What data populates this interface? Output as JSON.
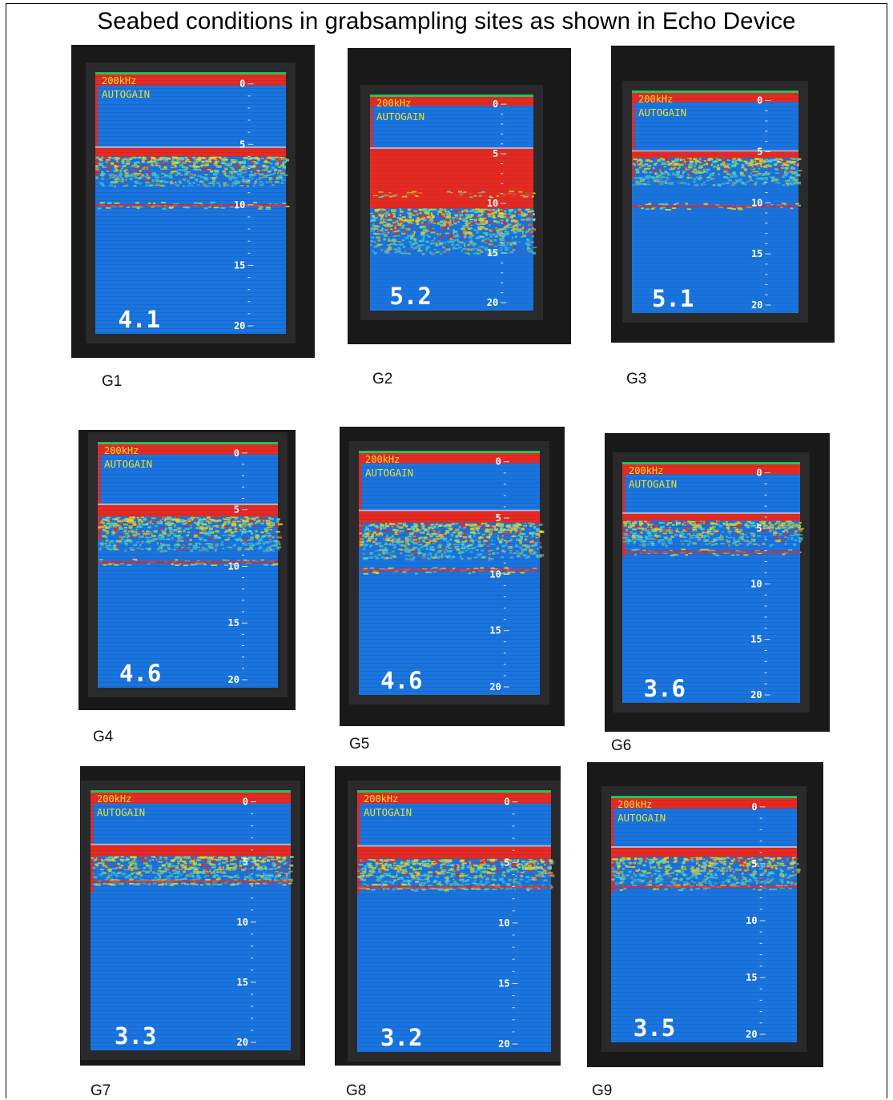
{
  "title": "Seabed conditions in grabsampling sites as shown in Echo Device",
  "colors": {
    "bezel_outer": "#191919",
    "bezel_inner": "#2a2a2c",
    "water": "#1a74de",
    "seabed_red": "#e62a21",
    "surface_green": "#22c85a",
    "yellow": "#e8d028",
    "cyan": "#49d3d6",
    "text_white": "#ffffff",
    "text_yellow": "#e8e030"
  },
  "screen_common": {
    "freq": "200kHz",
    "mode": "AUTOGAIN",
    "depth_scale": [
      "0",
      "5",
      "10",
      "15",
      "20"
    ],
    "max_depth": 20
  },
  "panels": [
    {
      "label": "G1",
      "depth": "4.1",
      "seabed_top": 5.3,
      "mid_band": 10.0,
      "red_thickness": 0.7,
      "extra_red": 0,
      "spread": 2.4
    },
    {
      "label": "G2",
      "depth": "5.2",
      "seabed_top": 4.5,
      "mid_band": 9.0,
      "red_thickness": 6.0,
      "extra_red": 0.3,
      "spread": 4.5
    },
    {
      "label": "G3",
      "depth": "5.1",
      "seabed_top": 5.0,
      "mid_band": 10.3,
      "red_thickness": 0.6,
      "extra_red": 0,
      "spread": 2.6
    },
    {
      "label": "G4",
      "depth": "4.6",
      "seabed_top": 4.6,
      "mid_band": 9.6,
      "red_thickness": 1.0,
      "extra_red": 0,
      "spread": 3.0
    },
    {
      "label": "G5",
      "depth": "4.6",
      "seabed_top": 4.4,
      "mid_band": 9.6,
      "red_thickness": 1.0,
      "extra_red": 0,
      "spread": 3.2
    },
    {
      "label": "G6",
      "depth": "3.6",
      "seabed_top": 3.7,
      "mid_band": 7.1,
      "red_thickness": 0.6,
      "extra_red": 0,
      "spread": 2.2
    },
    {
      "label": "G7",
      "depth": "3.3",
      "seabed_top": 3.6,
      "mid_band": 6.6,
      "red_thickness": 0.9,
      "extra_red": 0,
      "spread": 2.3
    },
    {
      "label": "G8",
      "depth": "3.2",
      "seabed_top": 3.7,
      "mid_band": 7.0,
      "red_thickness": 1.0,
      "extra_red": 0,
      "spread": 2.5
    },
    {
      "label": "G9",
      "depth": "3.5",
      "seabed_top": 3.6,
      "mid_band": 7.0,
      "red_thickness": 0.8,
      "extra_red": 0,
      "spread": 2.3
    }
  ]
}
